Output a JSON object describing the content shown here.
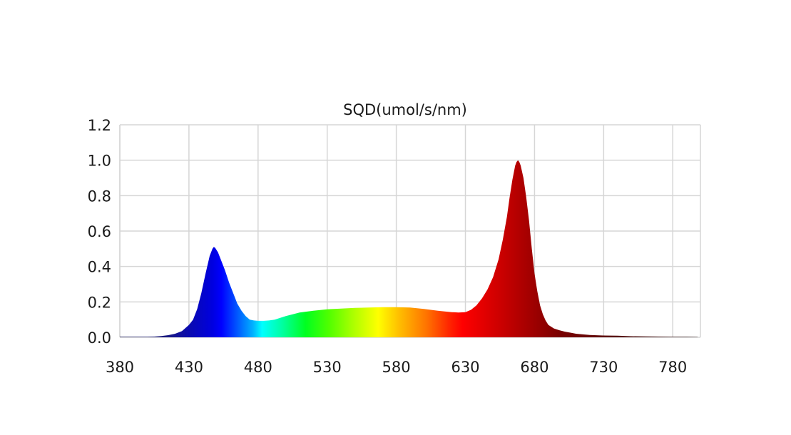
{
  "chart_data": {
    "type": "area",
    "title": "SQD(umol/s/nm)",
    "xlabel": "",
    "ylabel": "",
    "xlim": [
      380,
      800
    ],
    "ylim": [
      0,
      1.2
    ],
    "grid": true,
    "legend": null,
    "x_ticks": [
      "380",
      "430",
      "480",
      "530",
      "580",
      "630",
      "680",
      "730",
      "780"
    ],
    "y_ticks": [
      "0.0",
      "0.2",
      "0.4",
      "0.6",
      "0.8",
      "1.0",
      "1.2"
    ],
    "fill": "visible-spectrum gradient (wavelength-colored)",
    "peaks": [
      {
        "label": "blue",
        "x": 448,
        "y": 0.51
      },
      {
        "label": "red",
        "x": 668,
        "y": 1.0
      }
    ],
    "series": [
      {
        "name": "SQD",
        "x": [
          380,
          390,
          400,
          405,
          410,
          415,
          420,
          425,
          430,
          433,
          436,
          439,
          442,
          445,
          447,
          448,
          449,
          451,
          453,
          456,
          459,
          462,
          465,
          468,
          471,
          474,
          477,
          480,
          484,
          488,
          492,
          496,
          500,
          505,
          510,
          515,
          520,
          530,
          540,
          550,
          560,
          570,
          580,
          590,
          600,
          610,
          620,
          625,
          630,
          634,
          638,
          642,
          646,
          650,
          654,
          657,
          660,
          662,
          664,
          666,
          667,
          668,
          669,
          670,
          672,
          674,
          676,
          678,
          680,
          682,
          684,
          686,
          688,
          690,
          694,
          698,
          702,
          706,
          710,
          720,
          730,
          740,
          750,
          760,
          770,
          780,
          790,
          798
        ],
        "y": [
          0.003,
          0.003,
          0.003,
          0.004,
          0.007,
          0.012,
          0.02,
          0.035,
          0.07,
          0.1,
          0.16,
          0.25,
          0.36,
          0.46,
          0.5,
          0.51,
          0.505,
          0.48,
          0.44,
          0.38,
          0.31,
          0.25,
          0.19,
          0.15,
          0.12,
          0.1,
          0.095,
          0.093,
          0.093,
          0.095,
          0.1,
          0.11,
          0.12,
          0.13,
          0.14,
          0.145,
          0.15,
          0.158,
          0.162,
          0.166,
          0.168,
          0.17,
          0.17,
          0.168,
          0.16,
          0.15,
          0.142,
          0.14,
          0.142,
          0.155,
          0.18,
          0.22,
          0.27,
          0.34,
          0.44,
          0.55,
          0.68,
          0.79,
          0.89,
          0.97,
          0.99,
          1.0,
          0.99,
          0.97,
          0.9,
          0.79,
          0.66,
          0.5,
          0.36,
          0.26,
          0.18,
          0.13,
          0.095,
          0.07,
          0.05,
          0.04,
          0.032,
          0.026,
          0.02,
          0.013,
          0.01,
          0.009,
          0.006,
          0.005,
          0.004,
          0.003,
          0.003,
          0.002
        ]
      }
    ]
  }
}
